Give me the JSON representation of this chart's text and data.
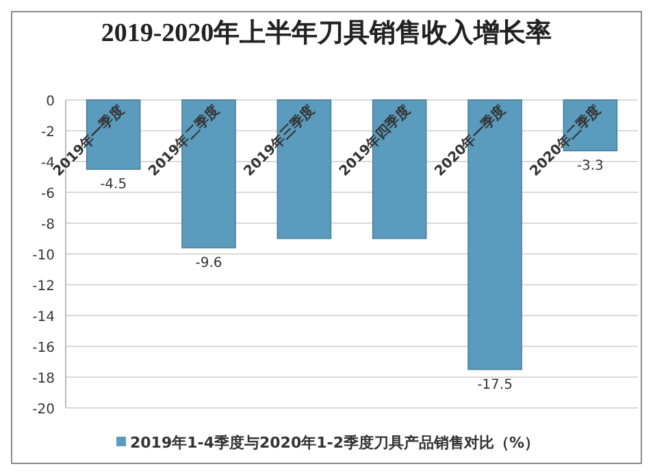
{
  "chart_data": {
    "type": "bar",
    "title": "2019-2020年上半年刀具销售收入增长率",
    "categories": [
      "2019年一季度",
      "2019年二季度",
      "2019年三季度",
      "2019年四季度",
      "2020年一季度",
      "2020年二季度"
    ],
    "series": [
      {
        "name": "2019年1-4季度与2020年1-2季度刀具产品销售对比（%）",
        "color": "#5b9bbd",
        "values": [
          -4.5,
          -9.6,
          -9.0,
          -9.0,
          -17.5,
          -3.3
        ],
        "value_labels": [
          "-4.5",
          "-9.6",
          null,
          null,
          "-17.5",
          "-3.3"
        ]
      }
    ],
    "ylim": [
      -20,
      0
    ],
    "yticks": [
      0,
      -2,
      -4,
      -6,
      -8,
      -10,
      -12,
      -14,
      -16,
      -18,
      -20
    ],
    "grid": "y",
    "legend": "bottom"
  }
}
